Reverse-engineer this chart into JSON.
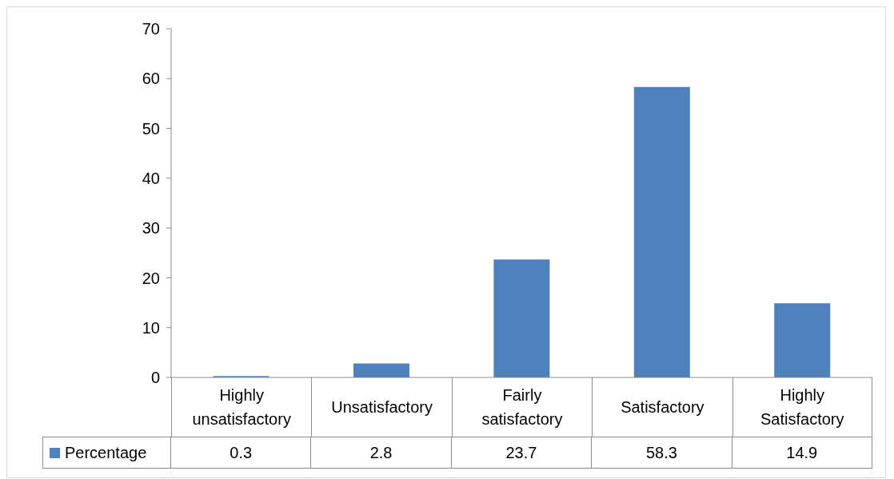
{
  "chart_data": {
    "type": "bar",
    "categories": [
      "Highly unsatisfactory",
      "Unsatisfactory",
      "Fairly satisfactory",
      "Satisfactory",
      "Highly Satisfactory"
    ],
    "series": [
      {
        "name": "Percentage",
        "color": "#4f81bd",
        "values": [
          0.3,
          2.8,
          23.7,
          58.3,
          14.9
        ]
      }
    ],
    "ylim": [
      0,
      70
    ],
    "yticks": [
      0,
      10,
      20,
      30,
      40,
      50,
      60,
      70
    ],
    "data_labels": true,
    "legend": "bottom",
    "grid": false
  }
}
